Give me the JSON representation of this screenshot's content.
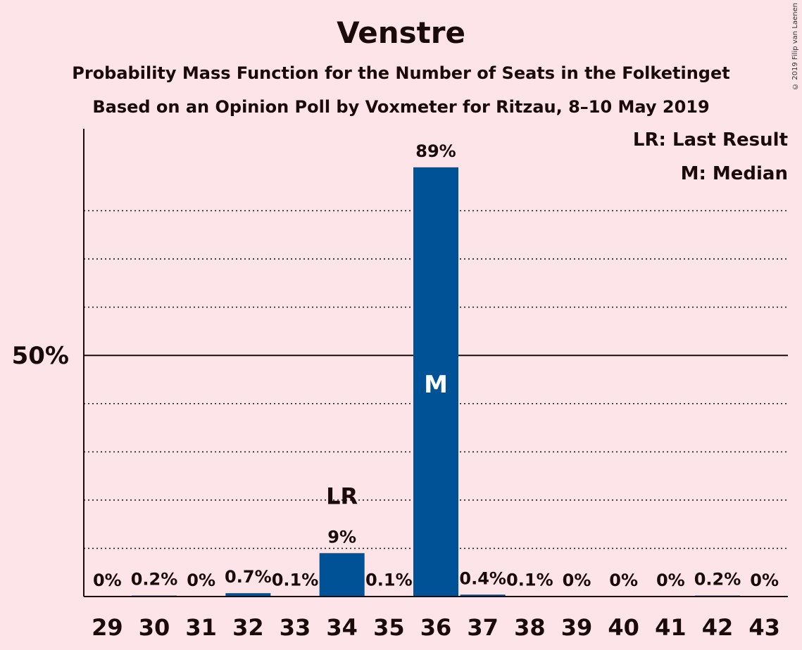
{
  "title": "Venstre",
  "subtitle1": "Probability Mass Function for the Number of Seats in the Folketinget",
  "subtitle2": "Based on an Opinion Poll by Voxmeter for Ritzau, 8–10 May 2019",
  "copyright": "© 2019 Filip van Laenen",
  "legend": {
    "last_result": "LR: Last Result",
    "median": "M: Median"
  },
  "colors": {
    "background": "#fde4e8",
    "bar": "#005296",
    "text": "#1a0a0a"
  },
  "chart_data": {
    "type": "bar",
    "categories": [
      "29",
      "30",
      "31",
      "32",
      "33",
      "34",
      "35",
      "36",
      "37",
      "38",
      "39",
      "40",
      "41",
      "42",
      "43"
    ],
    "values": [
      0,
      0.2,
      0,
      0.7,
      0.1,
      9,
      0.1,
      89,
      0.4,
      0.1,
      0,
      0,
      0,
      0.2,
      0
    ],
    "labels": [
      "0%",
      "0.2%",
      "0%",
      "0.7%",
      "0.1%",
      "9%",
      "0.1%",
      "89%",
      "0.4%",
      "0.1%",
      "0%",
      "0%",
      "0%",
      "0.2%",
      "0%"
    ],
    "ylim": [
      0,
      97
    ],
    "y_tick_label": "50%",
    "y_tick_value": 50,
    "gridlines": [
      10,
      20,
      30,
      40,
      60,
      70,
      80
    ],
    "last_result_category": "34",
    "last_result_marker": "LR",
    "median_category": "36",
    "median_marker": "M"
  }
}
